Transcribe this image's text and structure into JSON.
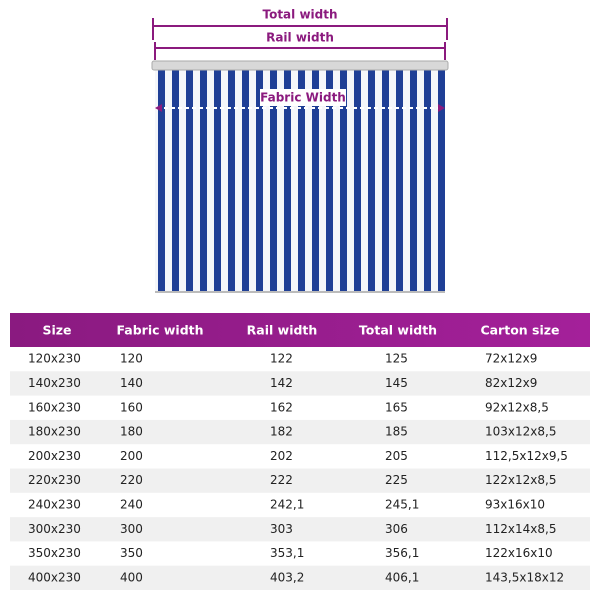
{
  "diagram": {
    "total_width": "Total width",
    "rail_width": "Rail width",
    "fabric_width": "Fabric Width"
  },
  "table": {
    "header": [
      "Size",
      "Fabric width",
      "Rail width",
      "Total width",
      "Carton size"
    ],
    "rows": [
      [
        "120x230",
        "120",
        "122",
        "125",
        "72x12x9"
      ],
      [
        "140x230",
        "140",
        "142",
        "145",
        "82x12x9"
      ],
      [
        "160x230",
        "160",
        "162",
        "165",
        "92x12x8,5"
      ],
      [
        "180x230",
        "180",
        "182",
        "185",
        "103x12x8,5"
      ],
      [
        "200x230",
        "200",
        "202",
        "205",
        "112,5x12x9,5"
      ],
      [
        "220x230",
        "220",
        "222",
        "225",
        "122x12x8,5"
      ],
      [
        "240x230",
        "240",
        "242,1",
        "245,1",
        "93x16x10"
      ],
      [
        "300x230",
        "300",
        "303",
        "306",
        "112x14x8,5"
      ],
      [
        "350x230",
        "350",
        "353,1",
        "356,1",
        "122x16x10"
      ],
      [
        "400x230",
        "400",
        "403,2",
        "406,1",
        "143,5x18x12"
      ]
    ]
  }
}
